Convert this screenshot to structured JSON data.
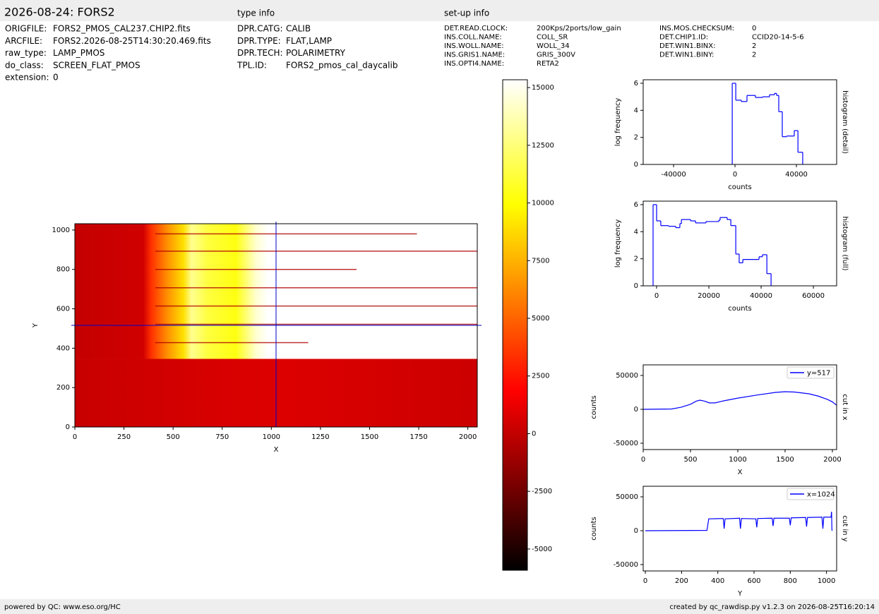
{
  "header": {
    "title": "2026-08-24: FORS2",
    "type_info_title": "type info",
    "setup_info_title": "set-up info"
  },
  "file_info": [
    [
      "ORIGFILE:",
      "FORS2_PMOS_CAL237.CHIP2.fits"
    ],
    [
      "ARCFILE:",
      "FORS2.2026-08-25T14:30:20.469.fits"
    ],
    [
      "raw_type:",
      "LAMP_PMOS"
    ],
    [
      "do_class:",
      "SCREEN_FLAT_PMOS"
    ],
    [
      "extension:",
      "0"
    ]
  ],
  "type_info": [
    [
      "DPR.CATG:",
      "CALIB"
    ],
    [
      "DPR.TYPE:",
      "FLAT,LAMP"
    ],
    [
      "DPR.TECH:",
      "POLARIMETRY"
    ],
    [
      "TPL.ID:",
      "FORS2_pmos_cal_daycalib"
    ]
  ],
  "setup_info": [
    [
      "DET.READ.CLOCK:",
      "200Kps/2ports/low_gain"
    ],
    [
      "INS.COLL.NAME:",
      "COLL_SR"
    ],
    [
      "INS.WOLL.NAME:",
      "WOLL_34"
    ],
    [
      "INS.GRIS1.NAME:",
      "GRIS_300V"
    ],
    [
      "INS.OPTI4.NAME:",
      "RETA2"
    ],
    [
      "INS.MOS.CHECKSUM:",
      "0"
    ],
    [
      "DET.CHIP1.ID:",
      "CCID20-14-5-6"
    ],
    [
      "DET.WIN1.BINX:",
      "2"
    ],
    [
      "DET.WIN1.BINY:",
      "2"
    ]
  ],
  "footer": {
    "left": "powered by QC: www.eso.org/HC",
    "right": "created by qc_rawdisp.py v1.2.3 on 2026-08-25T16:20:14"
  },
  "chart_data": [
    {
      "type": "image",
      "x_label": "X",
      "y_label": "Y",
      "xlim": [
        0,
        2048
      ],
      "ylim": [
        0,
        1032
      ],
      "xticks": [
        0,
        250,
        500,
        750,
        1000,
        1250,
        1500,
        1750,
        2000
      ],
      "yticks": [
        0,
        200,
        400,
        600,
        800,
        1000
      ],
      "crosshair_color": "#0000cc"
    },
    {
      "type": "colorbar",
      "colormap": "hot",
      "ylim": [
        -5920,
        15340
      ],
      "yticks": [
        -5000,
        -2500,
        0,
        2500,
        5000,
        7500,
        10000,
        12500,
        15000
      ]
    },
    {
      "type": "step",
      "x_label": "counts",
      "y_label": "log frequency",
      "side_label": "histogram (detail)",
      "color": "#0000ff",
      "xlim": [
        -59800,
        66200
      ],
      "ylim": [
        0,
        6.26
      ],
      "xticks": [
        -40000,
        0,
        40000
      ],
      "yticks": [
        0,
        2,
        4,
        6
      ],
      "bins": [
        -1800,
        500,
        4100,
        7800,
        13300,
        18000,
        22500,
        25700,
        27100,
        28500,
        30800,
        33600,
        38600,
        41000,
        44100
      ],
      "counts": [
        6,
        4.75,
        4.65,
        5.1,
        4.95,
        5.0,
        5.15,
        5.25,
        5.1,
        3.9,
        2.05,
        2.1,
        2.5,
        0.9
      ]
    },
    {
      "type": "step",
      "x_label": "counts",
      "y_label": "log frequency",
      "side_label": "histogram (full)",
      "color": "#0000ff",
      "xlim": [
        -5135,
        68900
      ],
      "ylim": [
        0,
        6.26
      ],
      "xticks": [
        0,
        20000,
        40000,
        60000
      ],
      "yticks": [
        0,
        2,
        4,
        6
      ],
      "bins": [
        -1350,
        0,
        1600,
        4600,
        7300,
        8900,
        9500,
        13000,
        14900,
        18900,
        23800,
        24300,
        27000,
        28400,
        30300,
        31600,
        33000,
        39200,
        40500,
        42200,
        43800
      ],
      "counts": [
        6,
        4.8,
        4.45,
        4.4,
        4.3,
        4.6,
        4.9,
        4.8,
        4.65,
        4.75,
        4.85,
        5.05,
        4.9,
        4.45,
        2.35,
        1.7,
        1.95,
        2.15,
        2.3,
        0.9
      ]
    },
    {
      "type": "line",
      "x_label": "X",
      "y_label": "counts",
      "side_label": "cut in x",
      "xlim": [
        0,
        2045
      ],
      "ylim": [
        -59400,
        65600
      ],
      "xticks": [
        0,
        500,
        1000,
        1500,
        2000
      ],
      "yticks": [
        -50000,
        0,
        50000
      ],
      "series": [
        {
          "name": "y=517",
          "color": "#0000ff",
          "x": [
            0,
            300,
            400,
            500,
            560,
            600,
            650,
            700,
            760,
            850,
            1000,
            1200,
            1400,
            1500,
            1600,
            1750,
            1850,
            1950,
            2000,
            2045
          ],
          "values": [
            0,
            500,
            3000,
            7500,
            12000,
            13500,
            12000,
            9500,
            9500,
            12500,
            16500,
            21000,
            25000,
            26000,
            25500,
            23000,
            19500,
            14500,
            11000,
            6000
          ]
        }
      ]
    },
    {
      "type": "line",
      "x_label": "Y",
      "y_label": "counts",
      "side_label": "cut in y",
      "xlim": [
        -12,
        1056
      ],
      "ylim": [
        -59400,
        65600
      ],
      "xticks": [
        0,
        200,
        400,
        600,
        800,
        1000
      ],
      "yticks": [
        -50000,
        0,
        50000
      ],
      "series": [
        {
          "name": "x=1024",
          "color": "#0000ff",
          "x": [
            0,
            340,
            350,
            430,
            435,
            440,
            520,
            525,
            530,
            610,
            615,
            620,
            700,
            705,
            710,
            795,
            800,
            805,
            885,
            890,
            895,
            975,
            980,
            985,
            1025,
            1028,
            1030,
            1032
          ],
          "values": [
            0,
            500,
            17500,
            18000,
            3000,
            17500,
            18500,
            3000,
            18000,
            17500,
            5000,
            18000,
            18500,
            7000,
            18500,
            18500,
            8000,
            19000,
            19500,
            6000,
            19500,
            20000,
            3000,
            20000,
            20000,
            28000,
            1000,
            0
          ]
        }
      ]
    }
  ]
}
